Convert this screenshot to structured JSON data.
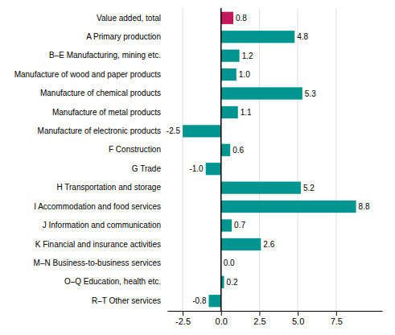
{
  "chart_data": {
    "type": "bar",
    "orientation": "horizontal",
    "categories": [
      "Value added, total",
      "A Primary production",
      "B–E Manufacturing, mining etc.",
      "Manufacture of wood and paper products",
      "Manufacture of chemical products",
      "Manufacture of metal products",
      "Manufacture of electronic products",
      "F Construction",
      "G Trade",
      "H Transportation and storage",
      "I Accommodation and food services",
      "J Information and communication",
      "K Financial and insurance activities",
      "M–N Business-to-business services",
      "O–Q Education, health etc.",
      "R–T Other services"
    ],
    "values": [
      0.8,
      4.8,
      1.2,
      1.0,
      5.3,
      1.1,
      -2.5,
      0.6,
      -1.0,
      5.2,
      8.8,
      0.7,
      2.6,
      0.0,
      0.2,
      -0.8
    ],
    "value_labels": [
      "0.8",
      "4.8",
      "1.2",
      "1.0",
      "5.3",
      "1.1",
      "-2.5",
      "0.6",
      "-1.0",
      "5.2",
      "8.8",
      "0.7",
      "2.6",
      "0.0",
      "0.2",
      "-0.8"
    ],
    "colors": [
      "#C2185B",
      "#00968F",
      "#00968F",
      "#00968F",
      "#00968F",
      "#00968F",
      "#00968F",
      "#00968F",
      "#00968F",
      "#00968F",
      "#00968F",
      "#00968F",
      "#00968F",
      "#00968F",
      "#00968F",
      "#00968F"
    ],
    "xlim": [
      -3.5,
      10.5
    ],
    "xticks": [
      -2.5,
      {
        "value": 0.0,
        "label": "0.0"
      },
      2.5,
      {
        "value": 5.0,
        "label": "5.0"
      },
      7.5
    ],
    "grid": true,
    "data_labels": true
  }
}
